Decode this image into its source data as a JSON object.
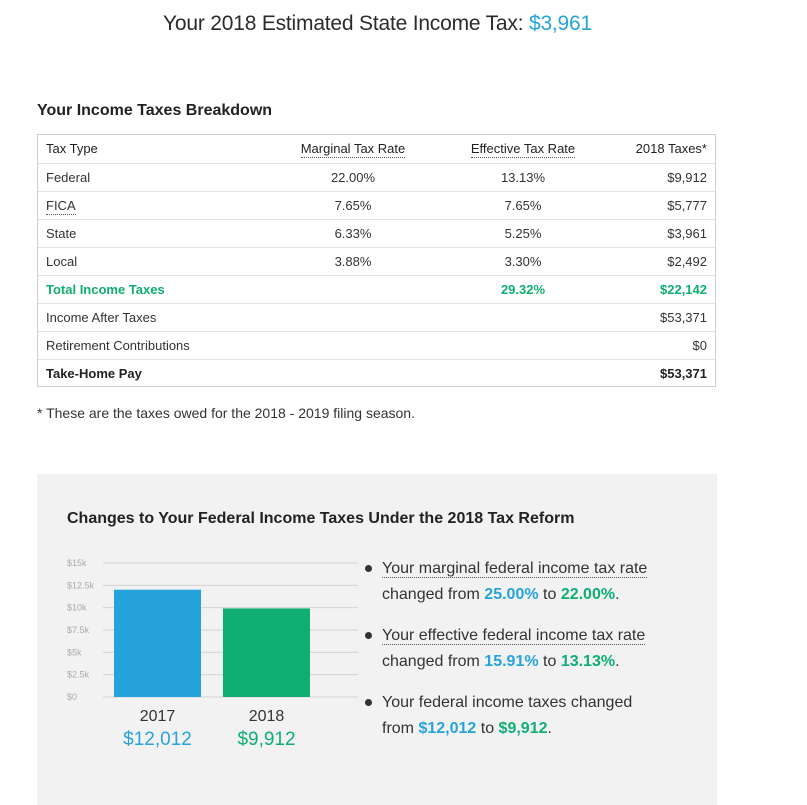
{
  "headline": {
    "prefix": "Your 2018 Estimated State Income Tax:",
    "amount": "$3,961"
  },
  "breakdown": {
    "title": "Your Income Taxes Breakdown",
    "columns": [
      "Tax Type",
      "Marginal Tax Rate",
      "Effective Tax Rate",
      "2018 Taxes*"
    ],
    "rows": [
      {
        "type": "Federal",
        "marginal": "22.00%",
        "effective": "13.13%",
        "taxes": "$9,912"
      },
      {
        "type": "FICA",
        "marginal": "7.65%",
        "effective": "7.65%",
        "taxes": "$5,777"
      },
      {
        "type": "State",
        "marginal": "6.33%",
        "effective": "5.25%",
        "taxes": "$3,961"
      },
      {
        "type": "Local",
        "marginal": "3.88%",
        "effective": "3.30%",
        "taxes": "$2,492"
      },
      {
        "type": "Total Income Taxes",
        "marginal": "",
        "effective": "29.32%",
        "taxes": "$22,142"
      },
      {
        "type": "Income After Taxes",
        "marginal": "",
        "effective": "",
        "taxes": "$53,371"
      },
      {
        "type": "Retirement Contributions",
        "marginal": "",
        "effective": "",
        "taxes": "$0"
      },
      {
        "type": "Take-Home Pay",
        "marginal": "",
        "effective": "",
        "taxes": "$53,371"
      }
    ],
    "footnote": "* These are the taxes owed for the 2018 - 2019 filing season."
  },
  "reform": {
    "title": "Changes to Your Federal Income Taxes Under the 2018 Tax Reform",
    "bullets": [
      {
        "lead": "Your marginal federal income tax rate",
        "mid": "changed from",
        "from": "25.00%",
        "to_word": "to",
        "to": "22.00%"
      },
      {
        "lead": "Your effective federal income tax rate",
        "mid": "changed from",
        "from": "15.91%",
        "to_word": "to",
        "to": "13.13%"
      },
      {
        "lead": "Your federal income taxes changed",
        "mid": "from",
        "from": "$12,012",
        "to_word": "to",
        "to": "$9,912"
      }
    ]
  },
  "chart_data": {
    "type": "bar",
    "categories": [
      "2017",
      "2018"
    ],
    "values": [
      12012,
      9912
    ],
    "value_labels": [
      "$12,012",
      "$9,912"
    ],
    "colors": [
      "#27a3dc",
      "#0fae72"
    ],
    "ylim": [
      0,
      15000
    ],
    "yticks": [
      0,
      2500,
      5000,
      7500,
      10000,
      12500,
      15000
    ],
    "ytick_labels": [
      "$0",
      "$2.5k",
      "$5k",
      "$7.5k",
      "$10k",
      "$12.5k",
      "$15k"
    ],
    "grid": true
  }
}
